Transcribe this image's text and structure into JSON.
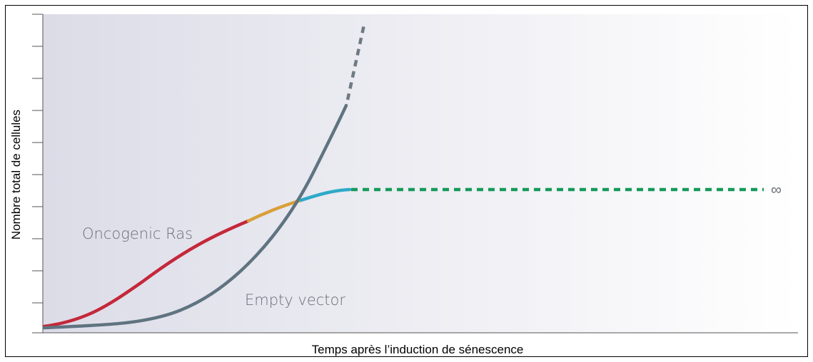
{
  "axes": {
    "y_label": "Nombre total de cellules",
    "x_label": "Temps après l’induction de sénescence"
  },
  "annotations": {
    "ras": "Oncogenic Ras",
    "empty": "Empty vector",
    "infinity": "∞"
  }
}
